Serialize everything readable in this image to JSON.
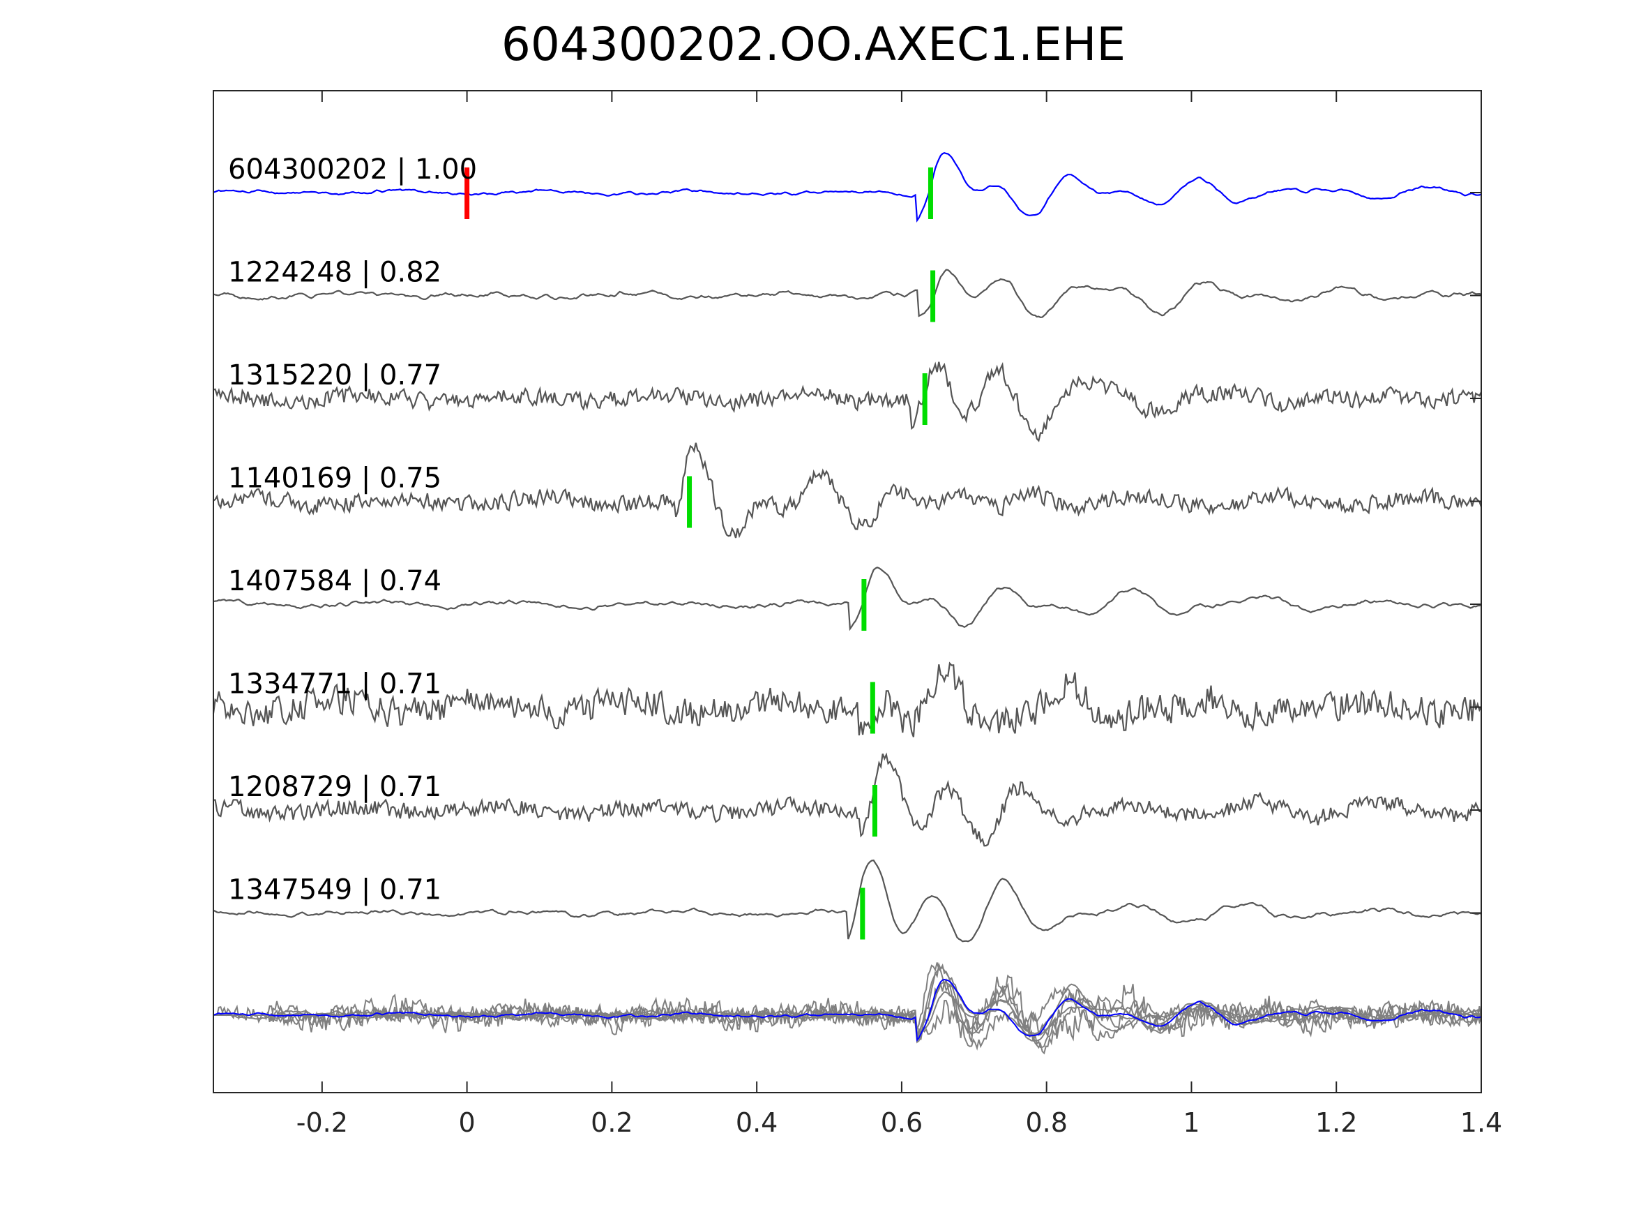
{
  "chart_data": {
    "type": "line",
    "title": "604300202.OO.AXEC1.EHE",
    "xlabel": "",
    "ylabel": "",
    "xlim": [
      -0.35,
      1.4
    ],
    "xticks": [
      -0.2,
      0,
      0.2,
      0.4,
      0.6,
      0.8,
      1,
      1.2,
      1.4
    ],
    "xtick_labels": [
      "-0.2",
      "0",
      "0.2",
      "0.4",
      "0.6",
      "0.8",
      "1",
      "1.2",
      "1.4"
    ],
    "grid": false,
    "legend": "none",
    "colors": {
      "template": "#0000ff",
      "neighbor": "#555555",
      "overlay": "#808080",
      "red_pick": "#ff0000",
      "green_pick": "#00dd00"
    },
    "template_pick": {
      "trace": "604300202",
      "x": 0.0,
      "color": "red"
    },
    "traces": [
      {
        "label": "604300202 | 1.00",
        "id": "604300202",
        "cc": "1.00",
        "color": "blue",
        "pick": 0.64,
        "style": "template"
      },
      {
        "label": "1224248 | 0.82",
        "id": "1224248",
        "cc": "0.82",
        "color": "gray",
        "pick": 0.643,
        "style": "smooth"
      },
      {
        "label": "1315220 | 0.77",
        "id": "1315220",
        "cc": "0.77",
        "color": "gray",
        "pick": 0.632,
        "style": "noisy"
      },
      {
        "label": "1140169 | 0.75",
        "id": "1140169",
        "cc": "0.75",
        "color": "gray",
        "pick": 0.307,
        "style": "noisy"
      },
      {
        "label": "1407584 | 0.74",
        "id": "1407584",
        "cc": "0.74",
        "color": "gray",
        "pick": 0.548,
        "style": "smooth"
      },
      {
        "label": "1334771 | 0.71",
        "id": "1334771",
        "cc": "0.71",
        "color": "gray",
        "pick": 0.56,
        "style": "very-noisy"
      },
      {
        "label": "1208729 | 0.71",
        "id": "1208729",
        "cc": "0.71",
        "color": "gray",
        "pick": 0.563,
        "style": "noisy"
      },
      {
        "label": "1347549 | 0.71",
        "id": "1347549",
        "cc": "0.71",
        "color": "gray",
        "pick": 0.546,
        "style": "smooth"
      }
    ],
    "stack": {
      "description_shown": false,
      "contains": "all aligned traces overlaid",
      "template_color": "blue",
      "others_color": "gray"
    }
  }
}
